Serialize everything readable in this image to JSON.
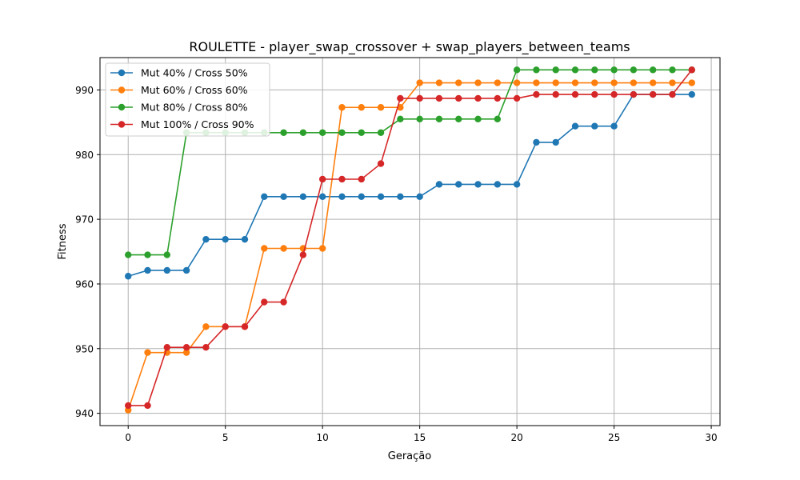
{
  "chart_data": {
    "type": "line",
    "title": "ROULETTE - player_swap_crossover + swap_players_between_teams",
    "xlabel": "Geração",
    "ylabel": "Fitness",
    "xlim": [
      -1.45,
      30.45
    ],
    "ylim": [
      938.1,
      995.0
    ],
    "xticks": [
      0,
      5,
      10,
      15,
      20,
      25,
      30
    ],
    "yticks": [
      940,
      950,
      960,
      970,
      980,
      990
    ],
    "grid": true,
    "legend_position": "upper-left",
    "x": [
      0,
      1,
      2,
      3,
      4,
      5,
      6,
      7,
      8,
      9,
      10,
      11,
      12,
      13,
      14,
      15,
      16,
      17,
      18,
      19,
      20,
      21,
      22,
      23,
      24,
      25,
      26,
      27,
      28,
      29
    ],
    "series": [
      {
        "name": "Mut 40% / Cross 50%",
        "color": "#1f77b4",
        "values": [
          961.2,
          962.1,
          962.1,
          962.1,
          966.9,
          966.9,
          966.9,
          973.5,
          973.5,
          973.5,
          973.5,
          973.5,
          973.5,
          973.5,
          973.5,
          973.5,
          975.4,
          975.4,
          975.4,
          975.4,
          975.4,
          981.9,
          981.9,
          984.4,
          984.4,
          984.4,
          989.3,
          989.3,
          989.3,
          989.3
        ]
      },
      {
        "name": "Mut 60% / Cross 60%",
        "color": "#ff7f0e",
        "values": [
          940.5,
          949.4,
          949.4,
          949.4,
          953.4,
          953.4,
          953.4,
          965.5,
          965.5,
          965.5,
          965.5,
          987.3,
          987.3,
          987.3,
          987.3,
          991.1,
          991.1,
          991.1,
          991.1,
          991.1,
          991.1,
          991.1,
          991.1,
          991.1,
          991.1,
          991.1,
          991.1,
          991.1,
          991.1,
          991.1
        ]
      },
      {
        "name": "Mut 80% / Cross 80%",
        "color": "#2ca02c",
        "values": [
          964.5,
          964.5,
          964.5,
          983.4,
          983.4,
          983.4,
          983.4,
          983.4,
          983.4,
          983.4,
          983.4,
          983.4,
          983.4,
          983.4,
          985.5,
          985.5,
          985.5,
          985.5,
          985.5,
          985.5,
          993.1,
          993.1,
          993.1,
          993.1,
          993.1,
          993.1,
          993.1,
          993.1,
          993.1,
          993.1
        ]
      },
      {
        "name": "Mut 100% / Cross 90%",
        "color": "#d62728",
        "values": [
          941.2,
          941.2,
          950.2,
          950.2,
          950.2,
          953.4,
          953.4,
          957.2,
          957.2,
          964.5,
          976.2,
          976.2,
          976.2,
          978.6,
          988.7,
          988.7,
          988.7,
          988.7,
          988.7,
          988.7,
          988.7,
          989.3,
          989.3,
          989.3,
          989.3,
          989.3,
          989.3,
          989.3,
          989.3,
          993.1
        ]
      }
    ]
  }
}
